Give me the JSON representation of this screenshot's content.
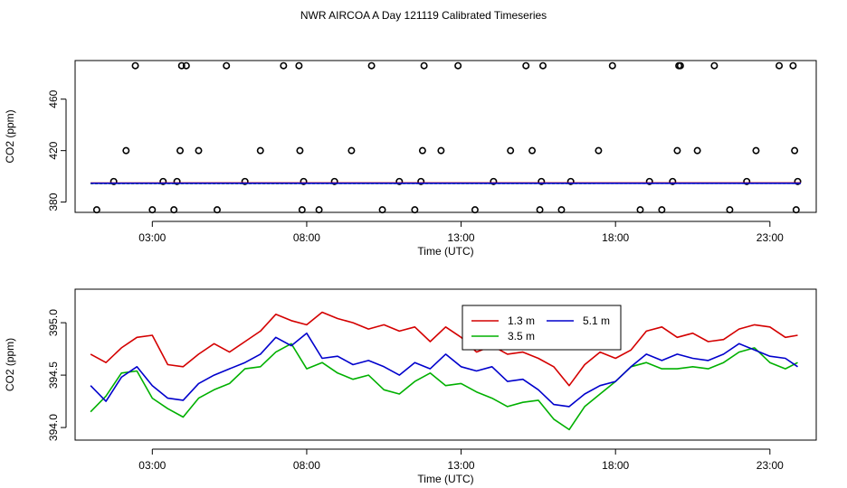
{
  "title": "NWR AIRCOA A  Day 121119  Calibrated Timeseries",
  "chart_data": [
    {
      "type": "scatter",
      "xlabel": "Time (UTC)",
      "ylabel": "CO2 (ppm)",
      "xlim": [
        0.5,
        24.5
      ],
      "ylim": [
        372,
        490
      ],
      "xticks": [
        3,
        8,
        13,
        18,
        23
      ],
      "xtick_labels": [
        "03:00",
        "08:00",
        "13:00",
        "18:00",
        "23:00"
      ],
      "yticks": [
        380,
        420,
        460
      ],
      "ytick_labels": [
        "380",
        "420",
        "460"
      ],
      "grid": false,
      "series": [
        {
          "color": "#000000",
          "style": "open-circle",
          "x": [
            1.2,
            1.75,
            2.15,
            2.45,
            3.0,
            3.35,
            3.7,
            3.8,
            3.9,
            3.95,
            4.1,
            4.5,
            5.1,
            5.4,
            6.0,
            6.5,
            7.25,
            7.75,
            7.78,
            7.85,
            7.9,
            8.4,
            8.9,
            9.45,
            10.1,
            10.45,
            11.0,
            11.5,
            11.7,
            11.75,
            11.8,
            12.35,
            12.9,
            13.45,
            14.05,
            14.6,
            15.1,
            15.3,
            15.55,
            15.6,
            15.65,
            16.25,
            16.55,
            17.45,
            17.9,
            18.8,
            19.1,
            19.5,
            19.85,
            20.0,
            20.05,
            20.1,
            20.65,
            21.2,
            21.7,
            22.25,
            22.55,
            23.3,
            23.75,
            23.8,
            23.85,
            23.9
          ],
          "y": [
            374,
            396,
            420,
            486,
            374,
            396,
            374,
            396,
            420,
            486,
            486,
            420,
            374,
            486,
            396,
            420,
            486,
            486,
            420,
            374,
            396,
            374,
            396,
            420,
            486,
            374,
            396,
            374,
            396,
            420,
            486,
            420,
            486,
            374,
            396,
            420,
            486,
            420,
            374,
            396,
            486,
            374,
            396,
            420,
            486,
            374,
            396,
            374,
            396,
            420,
            486,
            486,
            420,
            486,
            374,
            396,
            420,
            486,
            486,
            420,
            374,
            396
          ]
        },
        {
          "name": "1.3 m",
          "color": "#d40000",
          "style": "line",
          "x": [
            1.0,
            24.0
          ],
          "y": [
            394.8,
            394.9
          ]
        },
        {
          "name": "3.5 m",
          "color": "#00b000",
          "style": "dashed-line",
          "x": [
            1.0,
            24.0
          ],
          "y": [
            394.4,
            394.6
          ]
        },
        {
          "name": "5.1 m",
          "color": "#0000cc",
          "style": "line",
          "x": [
            1.0,
            24.0
          ],
          "y": [
            394.6,
            394.6
          ]
        }
      ]
    },
    {
      "type": "line",
      "xlabel": "Time (UTC)",
      "ylabel": "CO2 (ppm)",
      "xlim": [
        0.5,
        24.5
      ],
      "ylim": [
        393.88,
        395.32
      ],
      "xticks": [
        3,
        8,
        13,
        18,
        23
      ],
      "xtick_labels": [
        "03:00",
        "08:00",
        "13:00",
        "18:00",
        "23:00"
      ],
      "yticks": [
        394.0,
        394.5,
        395.0
      ],
      "ytick_labels": [
        "394.0",
        "394.5",
        "395.0"
      ],
      "grid": false,
      "legend": {
        "position": "top-center",
        "entries": [
          "1.3 m",
          "5.1 m",
          "3.5 m"
        ]
      },
      "series": [
        {
          "name": "1.3 m",
          "color": "#d40000",
          "x": [
            1.0,
            1.5,
            2.0,
            2.5,
            3.0,
            3.5,
            4.0,
            4.5,
            5.0,
            5.5,
            6.0,
            6.5,
            7.0,
            7.5,
            8.0,
            8.5,
            9.0,
            9.5,
            10.0,
            10.5,
            11.0,
            11.5,
            12.0,
            12.5,
            13.0,
            13.5,
            14.0,
            14.5,
            15.0,
            15.5,
            16.0,
            16.5,
            17.0,
            17.5,
            18.0,
            18.5,
            19.0,
            19.5,
            20.0,
            20.5,
            21.0,
            21.5,
            22.0,
            22.5,
            23.0,
            23.5,
            23.9
          ],
          "y": [
            394.7,
            394.62,
            394.76,
            394.86,
            394.88,
            394.6,
            394.58,
            394.7,
            394.8,
            394.72,
            394.82,
            394.92,
            395.08,
            395.02,
            394.98,
            395.1,
            395.04,
            395.0,
            394.94,
            394.98,
            394.92,
            394.96,
            394.82,
            394.96,
            394.86,
            394.72,
            394.78,
            394.7,
            394.72,
            394.66,
            394.58,
            394.4,
            394.6,
            394.72,
            394.66,
            394.74,
            394.92,
            394.96,
            394.86,
            394.9,
            394.82,
            394.84,
            394.94,
            394.98,
            394.96,
            394.86,
            394.88
          ]
        },
        {
          "name": "3.5 m",
          "color": "#00b000",
          "x": [
            1.0,
            1.5,
            2.0,
            2.5,
            3.0,
            3.5,
            4.0,
            4.5,
            5.0,
            5.5,
            6.0,
            6.5,
            7.0,
            7.5,
            8.0,
            8.5,
            9.0,
            9.5,
            10.0,
            10.5,
            11.0,
            11.5,
            12.0,
            12.5,
            13.0,
            13.5,
            14.0,
            14.5,
            15.0,
            15.5,
            16.0,
            16.5,
            17.0,
            17.5,
            18.0,
            18.5,
            19.0,
            19.5,
            20.0,
            20.5,
            21.0,
            21.5,
            22.0,
            22.5,
            23.0,
            23.5,
            23.9
          ],
          "y": [
            394.15,
            394.3,
            394.52,
            394.54,
            394.28,
            394.18,
            394.1,
            394.28,
            394.36,
            394.42,
            394.56,
            394.58,
            394.72,
            394.8,
            394.56,
            394.62,
            394.52,
            394.46,
            394.5,
            394.36,
            394.32,
            394.44,
            394.52,
            394.4,
            394.42,
            394.34,
            394.28,
            394.2,
            394.24,
            394.26,
            394.08,
            393.98,
            394.2,
            394.32,
            394.44,
            394.58,
            394.62,
            394.56,
            394.56,
            394.58,
            394.56,
            394.62,
            394.72,
            394.76,
            394.62,
            394.56,
            394.62
          ]
        },
        {
          "name": "5.1 m",
          "color": "#0000cc",
          "x": [
            1.0,
            1.5,
            2.0,
            2.5,
            3.0,
            3.5,
            4.0,
            4.5,
            5.0,
            5.5,
            6.0,
            6.5,
            7.0,
            7.5,
            8.0,
            8.5,
            9.0,
            9.5,
            10.0,
            10.5,
            11.0,
            11.5,
            12.0,
            12.5,
            13.0,
            13.5,
            14.0,
            14.5,
            15.0,
            15.5,
            16.0,
            16.5,
            17.0,
            17.5,
            18.0,
            18.5,
            19.0,
            19.5,
            20.0,
            20.5,
            21.0,
            21.5,
            22.0,
            22.5,
            23.0,
            23.5,
            23.9
          ],
          "y": [
            394.4,
            394.25,
            394.48,
            394.58,
            394.4,
            394.28,
            394.26,
            394.42,
            394.5,
            394.56,
            394.62,
            394.7,
            394.86,
            394.78,
            394.9,
            394.66,
            394.68,
            394.6,
            394.64,
            394.58,
            394.5,
            394.62,
            394.56,
            394.7,
            394.58,
            394.54,
            394.58,
            394.44,
            394.46,
            394.36,
            394.22,
            394.2,
            394.32,
            394.4,
            394.44,
            394.58,
            394.7,
            394.64,
            394.7,
            394.66,
            394.64,
            394.7,
            394.8,
            394.74,
            394.68,
            394.66,
            394.58
          ]
        }
      ]
    }
  ]
}
